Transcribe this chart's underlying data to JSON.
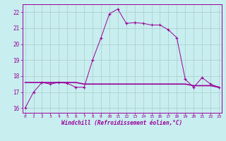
{
  "x": [
    0,
    1,
    2,
    3,
    4,
    5,
    6,
    7,
    8,
    9,
    10,
    11,
    12,
    13,
    14,
    15,
    16,
    17,
    18,
    19,
    20,
    21,
    22,
    23
  ],
  "line1": [
    16.0,
    17.0,
    17.6,
    17.5,
    17.6,
    17.55,
    17.3,
    17.3,
    19.0,
    20.4,
    21.9,
    22.2,
    21.3,
    21.35,
    21.3,
    21.2,
    21.2,
    20.9,
    20.4,
    17.8,
    17.3,
    17.9,
    17.5,
    17.3
  ],
  "line2": [
    17.6,
    17.6,
    17.6,
    17.6,
    17.6,
    17.6,
    17.6,
    17.5,
    17.5,
    17.5,
    17.5,
    17.5,
    17.5,
    17.5,
    17.5,
    17.5,
    17.5,
    17.5,
    17.5,
    17.5,
    17.4,
    17.4,
    17.4,
    17.3
  ],
  "line_color": "#990099",
  "bg_color": "#c8eef0",
  "grid_color": "#aacccc",
  "xlabel": "Windchill (Refroidissement éolien,°C)",
  "ylim": [
    15.7,
    22.5
  ],
  "yticks": [
    16,
    17,
    18,
    19,
    20,
    21,
    22
  ],
  "xticks": [
    0,
    1,
    2,
    3,
    4,
    5,
    6,
    7,
    8,
    9,
    10,
    11,
    12,
    13,
    14,
    15,
    16,
    17,
    18,
    19,
    20,
    21,
    22,
    23
  ]
}
